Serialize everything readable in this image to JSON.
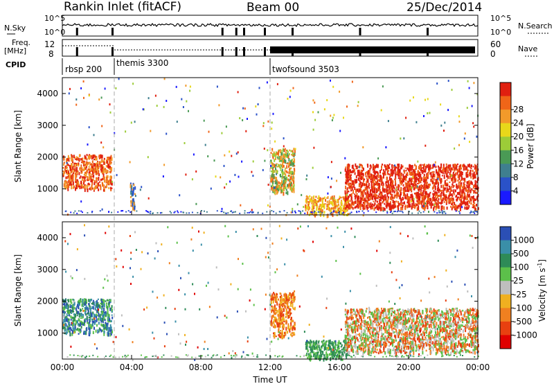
{
  "header": {
    "station": "Rankin Inlet (fitACF)",
    "beam": "Beam 00",
    "date": "25/Dec/2014"
  },
  "labels": {
    "nsky": "N.Sky",
    "nsearch": "N.Search",
    "freq_line1": "Freq.",
    "freq_line2": "[MHz]",
    "nave": "Nave",
    "cpid": "CPID",
    "slant_range": "Slant Range [km]",
    "time_ut": "Time UT",
    "power": "Power [dB]",
    "velocity_label": "Velocity [m s",
    "velocity_exp": "-1",
    "velocity_close": "]"
  },
  "sky_axis": {
    "left": [
      "10^5",
      "10^0"
    ],
    "right": [
      "10^5",
      "10^0"
    ]
  },
  "freq_axis": {
    "left": [
      "12",
      "8"
    ],
    "right": [
      "60",
      "0"
    ]
  },
  "cpid_segments": [
    {
      "label": "rbsp 200",
      "start_hour": 0.0
    },
    {
      "label": "themis 3300",
      "start_hour": 3.0
    },
    {
      "label": "twofsound 3503",
      "start_hour": 12.0
    }
  ],
  "chart_data": [
    {
      "type": "heatmap",
      "name": "power",
      "x_range_hours": [
        0,
        24
      ],
      "ylim": [
        180,
        4500
      ],
      "yticks": [
        1000,
        2000,
        3000,
        4000
      ],
      "colorbar": {
        "ticks": [
          "4",
          "8",
          "12",
          "16",
          "20",
          "24",
          "28"
        ],
        "colors": [
          "#1a1aff",
          "#2a52c8",
          "#3f7f8f",
          "#4a9a55",
          "#9ccc38",
          "#e8d81a",
          "#f29a2a",
          "#f06518",
          "#e02010"
        ]
      },
      "regions": [
        {
          "t0": 0.0,
          "t1": 2.85,
          "r0": 1000,
          "r1": 2100,
          "level": "orange-red"
        },
        {
          "t0": 3.9,
          "t1": 4.2,
          "r0": 400,
          "r1": 1200,
          "level": "blue-orange"
        },
        {
          "t0": 12.0,
          "t1": 13.4,
          "r0": 900,
          "r1": 2300,
          "level": "green-orange"
        },
        {
          "t0": 14.0,
          "t1": 16.5,
          "r0": 200,
          "r1": 800,
          "level": "orange"
        },
        {
          "t0": 16.3,
          "t1": 24.0,
          "r0": 400,
          "r1": 1800,
          "level": "red"
        }
      ]
    },
    {
      "type": "heatmap",
      "name": "velocity",
      "x_range_hours": [
        0,
        24
      ],
      "ylim": [
        180,
        4500
      ],
      "yticks": [
        1000,
        2000,
        3000,
        4000
      ],
      "colorbar": {
        "ticks": [
          "1000",
          "500",
          "100",
          "25",
          "-25",
          "-100",
          "-500",
          "-1000"
        ],
        "colors": [
          "#2b4fb5",
          "#3a8fa8",
          "#2e8b57",
          "#5cc04a",
          "#bebebe",
          "#f0b020",
          "#f08020",
          "#e84010",
          "#e00000"
        ]
      },
      "regions": [
        {
          "t0": 0.0,
          "t1": 2.85,
          "r0": 1000,
          "r1": 2100,
          "level": "blue-green"
        },
        {
          "t0": 12.0,
          "t1": 13.4,
          "r0": 900,
          "r1": 2300,
          "level": "orange"
        },
        {
          "t0": 14.0,
          "t1": 16.5,
          "r0": 200,
          "r1": 800,
          "level": "green"
        },
        {
          "t0": 16.3,
          "t1": 24.0,
          "r0": 400,
          "r1": 1800,
          "level": "green-orange"
        }
      ]
    }
  ],
  "xaxis": {
    "ticks": [
      "00:00",
      "04:00",
      "08:00",
      "12:00",
      "16:00",
      "20:00",
      "00:00"
    ]
  }
}
